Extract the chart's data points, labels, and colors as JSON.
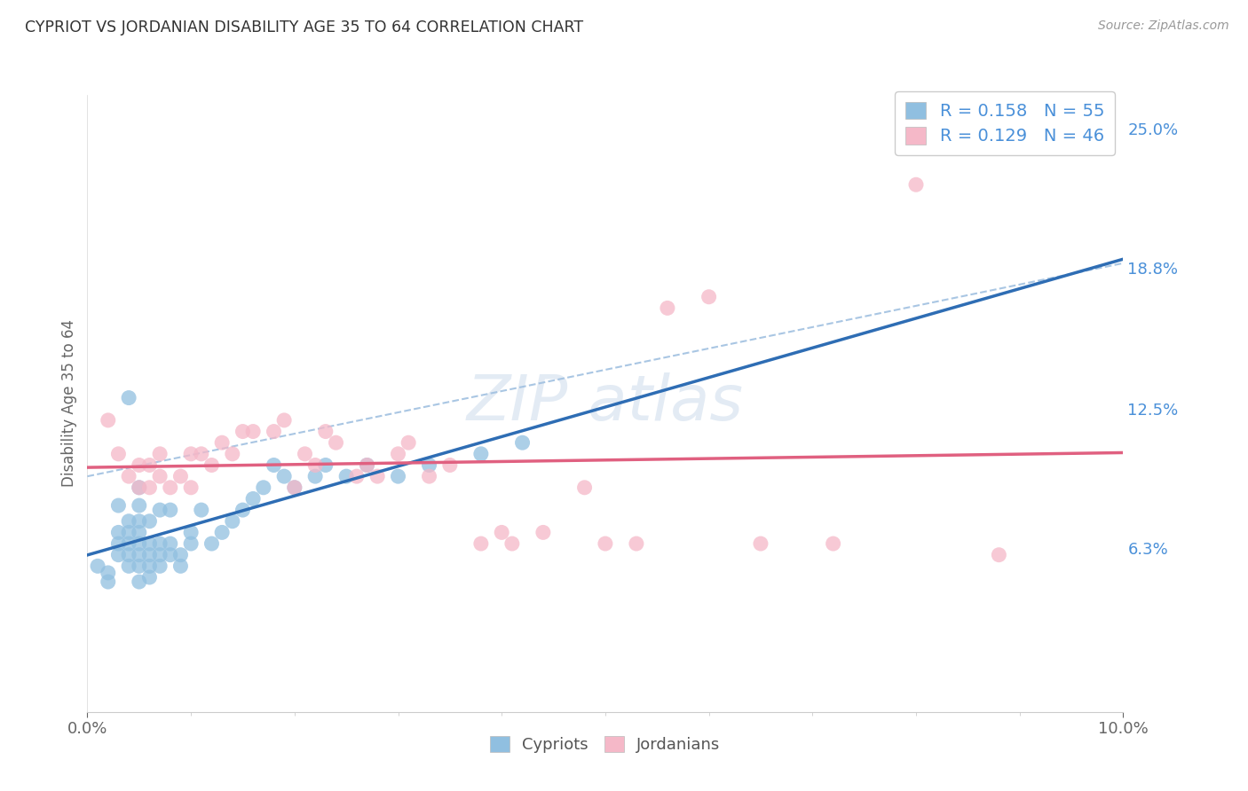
{
  "title": "CYPRIOT VS JORDANIAN DISABILITY AGE 35 TO 64 CORRELATION CHART",
  "source": "Source: ZipAtlas.com",
  "ylabel": "Disability Age 35 to 64",
  "xlim": [
    0.0,
    0.1
  ],
  "ylim": [
    -0.01,
    0.265
  ],
  "plot_ylim": [
    -0.01,
    0.265
  ],
  "xtick_vals": [
    0.0,
    0.1
  ],
  "xtick_labels": [
    "0.0%",
    "10.0%"
  ],
  "ytick_values": [
    0.063,
    0.125,
    0.188,
    0.25
  ],
  "ytick_labels": [
    "6.3%",
    "12.5%",
    "18.8%",
    "25.0%"
  ],
  "cypriot_R": 0.158,
  "cypriot_N": 55,
  "jordanian_R": 0.129,
  "jordanian_N": 46,
  "cypriot_color": "#90bfe0",
  "jordanian_color": "#f5b8c8",
  "cypriot_line_color": "#2e6db4",
  "jordanian_line_color": "#e06080",
  "dashed_line_color": "#a0c0e0",
  "background_color": "#ffffff",
  "grid_color": "#d8d8d8",
  "watermark_color": "#c8d8ea",
  "title_color": "#333333",
  "source_color": "#999999",
  "tick_color": "#666666",
  "right_tick_color": "#4a90d9",
  "cypriot_x": [
    0.001,
    0.002,
    0.002,
    0.003,
    0.003,
    0.003,
    0.003,
    0.004,
    0.004,
    0.004,
    0.004,
    0.004,
    0.004,
    0.005,
    0.005,
    0.005,
    0.005,
    0.005,
    0.005,
    0.005,
    0.005,
    0.006,
    0.006,
    0.006,
    0.006,
    0.006,
    0.007,
    0.007,
    0.007,
    0.007,
    0.008,
    0.008,
    0.008,
    0.009,
    0.009,
    0.01,
    0.01,
    0.011,
    0.012,
    0.013,
    0.014,
    0.015,
    0.016,
    0.017,
    0.018,
    0.019,
    0.02,
    0.022,
    0.023,
    0.025,
    0.027,
    0.03,
    0.033,
    0.038,
    0.042
  ],
  "cypriot_y": [
    0.055,
    0.048,
    0.052,
    0.06,
    0.065,
    0.07,
    0.082,
    0.055,
    0.06,
    0.065,
    0.07,
    0.075,
    0.13,
    0.048,
    0.055,
    0.06,
    0.065,
    0.07,
    0.075,
    0.082,
    0.09,
    0.05,
    0.055,
    0.06,
    0.065,
    0.075,
    0.055,
    0.06,
    0.065,
    0.08,
    0.06,
    0.065,
    0.08,
    0.055,
    0.06,
    0.065,
    0.07,
    0.08,
    0.065,
    0.07,
    0.075,
    0.08,
    0.085,
    0.09,
    0.1,
    0.095,
    0.09,
    0.095,
    0.1,
    0.095,
    0.1,
    0.095,
    0.1,
    0.105,
    0.11
  ],
  "jordanian_x": [
    0.002,
    0.003,
    0.004,
    0.005,
    0.005,
    0.006,
    0.006,
    0.007,
    0.007,
    0.008,
    0.009,
    0.01,
    0.01,
    0.011,
    0.012,
    0.013,
    0.014,
    0.015,
    0.016,
    0.018,
    0.019,
    0.02,
    0.021,
    0.022,
    0.023,
    0.024,
    0.026,
    0.027,
    0.028,
    0.03,
    0.031,
    0.033,
    0.035,
    0.038,
    0.04,
    0.041,
    0.044,
    0.048,
    0.05,
    0.053,
    0.056,
    0.06,
    0.065,
    0.072,
    0.08,
    0.088
  ],
  "jordanian_y": [
    0.12,
    0.105,
    0.095,
    0.09,
    0.1,
    0.09,
    0.1,
    0.095,
    0.105,
    0.09,
    0.095,
    0.09,
    0.105,
    0.105,
    0.1,
    0.11,
    0.105,
    0.115,
    0.115,
    0.115,
    0.12,
    0.09,
    0.105,
    0.1,
    0.115,
    0.11,
    0.095,
    0.1,
    0.095,
    0.105,
    0.11,
    0.095,
    0.1,
    0.065,
    0.07,
    0.065,
    0.07,
    0.09,
    0.065,
    0.065,
    0.17,
    0.175,
    0.065,
    0.065,
    0.225,
    0.06
  ],
  "dashed_line_start_x": 0.025,
  "dashed_line_end_x": 0.1
}
